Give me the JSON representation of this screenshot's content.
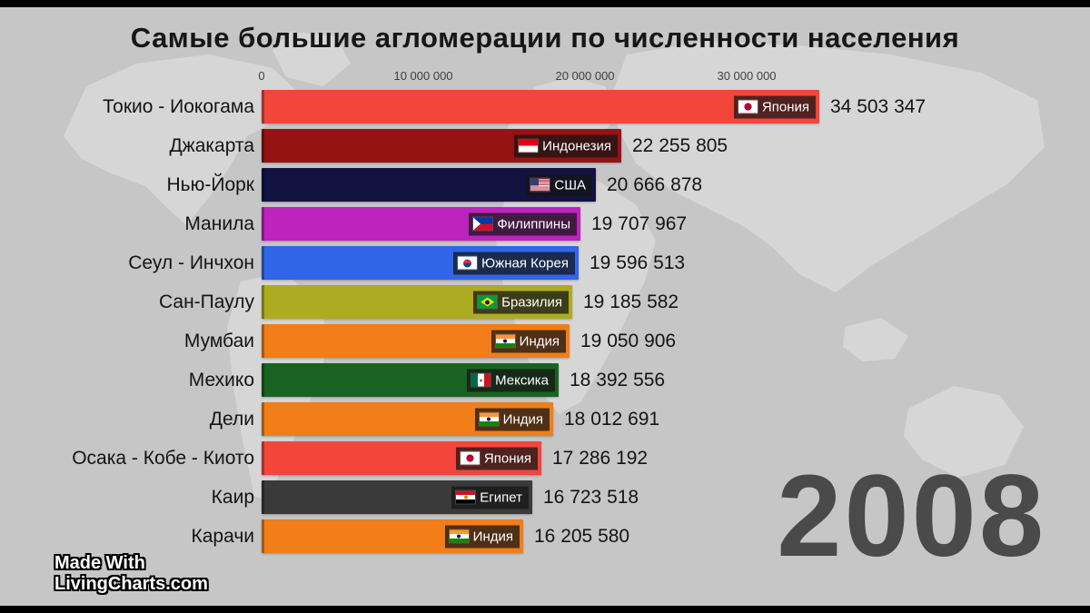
{
  "chart_data": {
    "type": "bar",
    "orientation": "horizontal",
    "title": "Самые большие агломерации по численности населения",
    "year": "2008",
    "xlim": [
      0,
      30000000
    ],
    "grid": false,
    "legend": false,
    "x_ticks": [
      {
        "label": "0",
        "value": 0
      },
      {
        "label": "10 000 000",
        "value": 10000000
      },
      {
        "label": "20 000 000",
        "value": 20000000
      },
      {
        "label": "30 000 000",
        "value": 30000000
      }
    ],
    "bars": [
      {
        "rank": 1,
        "label": "Токио - Иокогама",
        "value": 34503347,
        "value_label": "34 503 347",
        "country": "Япония",
        "flag": "jp",
        "flag_icon": "japan-flag-icon",
        "color": "#f2463a"
      },
      {
        "rank": 2,
        "label": "Джакарта",
        "value": 22255805,
        "value_label": "22 255 805",
        "country": "Индонезия",
        "flag": "id",
        "flag_icon": "indonesia-flag-icon",
        "color": "#951313"
      },
      {
        "rank": 3,
        "label": "Нью-Йорк",
        "value": 20666878,
        "value_label": "20 666 878",
        "country": "США",
        "flag": "us",
        "flag_icon": "usa-flag-icon",
        "color": "#131342"
      },
      {
        "rank": 4,
        "label": "Манила",
        "value": 19707967,
        "value_label": "19 707 967",
        "country": "Филиппины",
        "flag": "ph",
        "flag_icon": "philippines-flag-icon",
        "color": "#bd23bd"
      },
      {
        "rank": 5,
        "label": "Сеул - Инчхон",
        "value": 19596513,
        "value_label": "19 596 513",
        "country": "Южная Корея",
        "flag": "kr",
        "flag_icon": "south-korea-flag-icon",
        "color": "#3166e8"
      },
      {
        "rank": 6,
        "label": "Сан-Паулу",
        "value": 19185582,
        "value_label": "19 185 582",
        "country": "Бразилия",
        "flag": "br",
        "flag_icon": "brazil-flag-icon",
        "color": "#adab22"
      },
      {
        "rank": 7,
        "label": "Мумбаи",
        "value": 19050906,
        "value_label": "19 050 906",
        "country": "Индия",
        "flag": "in",
        "flag_icon": "india-flag-icon",
        "color": "#f17e18"
      },
      {
        "rank": 8,
        "label": "Мехико",
        "value": 18392556,
        "value_label": "18 392 556",
        "country": "Мексика",
        "flag": "mx",
        "flag_icon": "mexico-flag-icon",
        "color": "#186322"
      },
      {
        "rank": 9,
        "label": "Дели",
        "value": 18012691,
        "value_label": "18 012 691",
        "country": "Индия",
        "flag": "in",
        "flag_icon": "india-flag-icon",
        "color": "#f17e18"
      },
      {
        "rank": 10,
        "label": "Осака - Кобе - Киото",
        "value": 17286192,
        "value_label": "17 286 192",
        "country": "Япония",
        "flag": "jp",
        "flag_icon": "japan-flag-icon",
        "color": "#f2463a"
      },
      {
        "rank": 11,
        "label": "Каир",
        "value": 16723518,
        "value_label": "16 723 518",
        "country": "Египет",
        "flag": "eg",
        "flag_icon": "egypt-flag-icon",
        "color": "#3a3a3a"
      },
      {
        "rank": 12,
        "label": "Карачи",
        "value": 16205580,
        "value_label": "16 205 580",
        "country": "Индия",
        "flag": "in",
        "flag_icon": "india-flag-icon",
        "color": "#f17e18"
      }
    ]
  },
  "watermark": {
    "line1": "Made With",
    "line2": "LivingCharts.com"
  },
  "colors": {
    "background": "#c6c6c6",
    "map_silhouette": "#d6d6d6",
    "title_text": "#161616",
    "year_text": "#4a4a4a",
    "tag_background": "rgba(22,22,22,0.74)"
  }
}
